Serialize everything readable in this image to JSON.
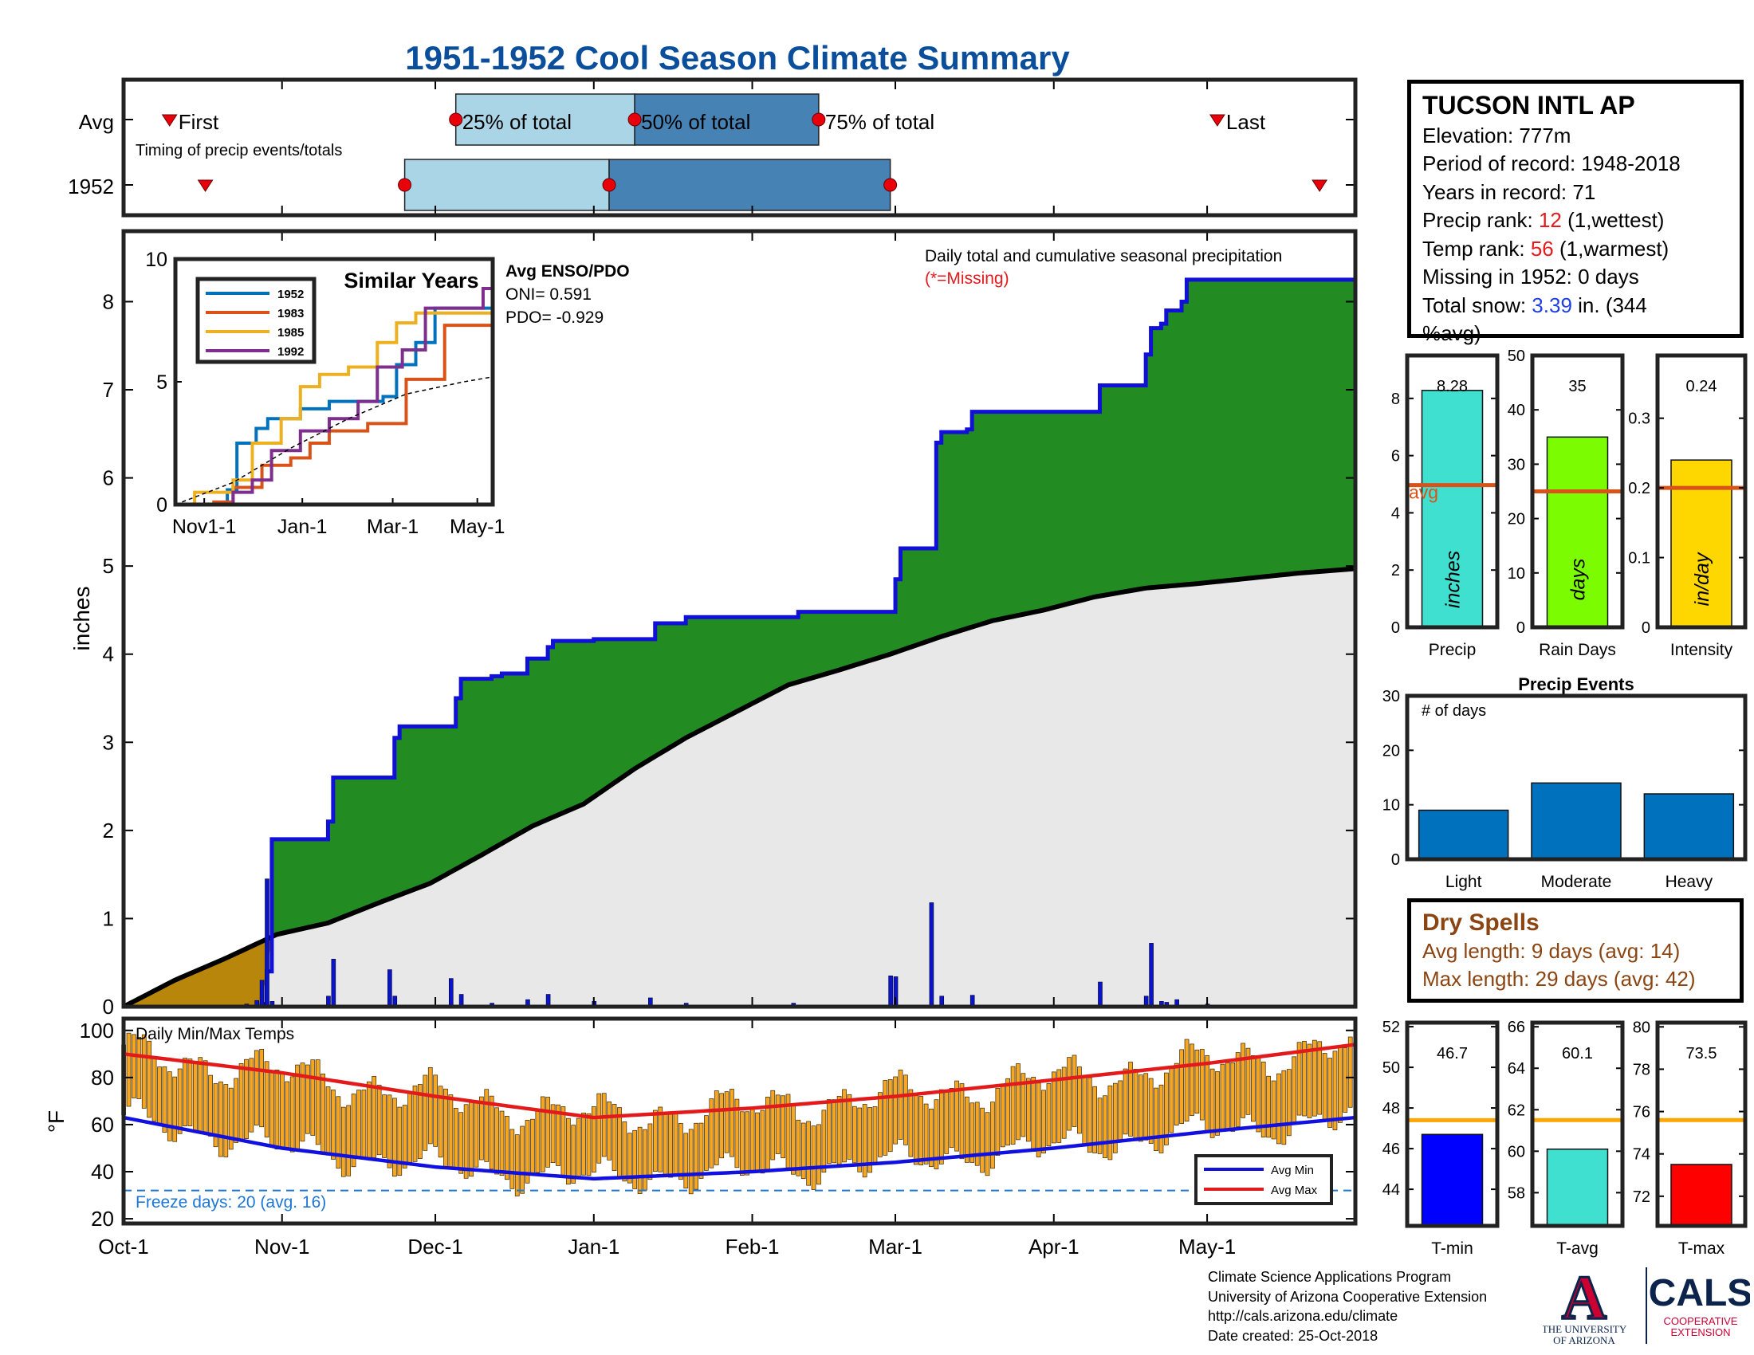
{
  "title": "1951-1952 Cool Season Climate Summary",
  "colors": {
    "title": "#0b4f9c",
    "light_band": "#a9d5e6",
    "dark_band": "#4682b4",
    "cumulative_fill": "#228b22",
    "cumulative_line": "#1010d8",
    "average_fill": "#e8e8e8",
    "early_fill": "#b8860b",
    "temp_bar": "#f5a623",
    "avg_min": "#1010e0",
    "avg_max": "#e31a1c",
    "freeze_line": "#1f77d4"
  },
  "timing": {
    "rows": [
      "Avg",
      "1952"
    ],
    "note": "Timing of precip events/totals",
    "labels": {
      "first": "First",
      "p25": "25% of total",
      "p50": "50% of total",
      "p75": "75% of total",
      "last": "Last"
    },
    "avg": {
      "first": 9,
      "p25": 65,
      "p50": 100,
      "p75": 136,
      "last": 214
    },
    "year": {
      "first": 16,
      "p25": 55,
      "p50": 95,
      "p75": 150,
      "last": 234
    }
  },
  "station": {
    "name": "TUCSON INTL AP",
    "elevation": "Elevation: 777m",
    "period": "Period of record: 1948-2018",
    "years": "Years in record: 71",
    "precip_rank_label": "Precip rank: ",
    "precip_rank": "12",
    "precip_rank_note": " (1,wettest)",
    "temp_rank_label": "Temp rank: ",
    "temp_rank": "56",
    "temp_rank_note": " (1,warmest)",
    "missing": "Missing in 1952: 0 days",
    "snow_label": "Total snow: ",
    "snow_value": "3.39",
    "snow_note_1": " in. (344",
    "snow_note_2": "%avg)"
  },
  "main_chart": {
    "ylabel": "inches",
    "yticks": [
      0,
      1,
      2,
      3,
      4,
      5,
      6,
      7,
      8
    ],
    "xticks": [
      "Oct-1",
      "Nov-1",
      "Dec-1",
      "Jan-1",
      "Feb-1",
      "Mar-1",
      "Apr-1",
      "May-1"
    ],
    "xtick_days": [
      0,
      31,
      61,
      92,
      123,
      151,
      182,
      212
    ],
    "note": "Daily total and cumulative seasonal precipitation",
    "missing_note": "(*=Missing)",
    "enso_title": "Avg ENSO/PDO",
    "oni": "ONI= 0.591",
    "pdo": "PDO= -0.929"
  },
  "chart_data": [
    {
      "type": "area",
      "title": "Daily total and cumulative seasonal precipitation",
      "ylabel": "inches",
      "ylim": [
        0,
        8.8
      ],
      "x_unit": "days since Oct-1",
      "cumulative_1952": [
        [
          0,
          0
        ],
        [
          27,
          0.03
        ],
        [
          28,
          0.4
        ],
        [
          29,
          1.9
        ],
        [
          39,
          1.9
        ],
        [
          40,
          2.1
        ],
        [
          41,
          2.6
        ],
        [
          52,
          2.6
        ],
        [
          53,
          3.05
        ],
        [
          54,
          3.18
        ],
        [
          64,
          3.18
        ],
        [
          65,
          3.5
        ],
        [
          66,
          3.72
        ],
        [
          72,
          3.75
        ],
        [
          74,
          3.78
        ],
        [
          79,
          3.95
        ],
        [
          83,
          4.08
        ],
        [
          84,
          4.15
        ],
        [
          92,
          4.17
        ],
        [
          103,
          4.17
        ],
        [
          104,
          4.35
        ],
        [
          110,
          4.42
        ],
        [
          131,
          4.42
        ],
        [
          132,
          4.48
        ],
        [
          150,
          4.48
        ],
        [
          151,
          4.85
        ],
        [
          152,
          5.2
        ],
        [
          158,
          5.2
        ],
        [
          159,
          6.4
        ],
        [
          160,
          6.52
        ],
        [
          165,
          6.55
        ],
        [
          166,
          6.75
        ],
        [
          190,
          6.75
        ],
        [
          191,
          7.05
        ],
        [
          199,
          7.05
        ],
        [
          200,
          7.4
        ],
        [
          201,
          7.7
        ],
        [
          203,
          7.75
        ],
        [
          204,
          7.9
        ],
        [
          207,
          8.0
        ],
        [
          208,
          8.25
        ],
        [
          241,
          8.28
        ]
      ],
      "average_cumulative": [
        [
          0,
          0
        ],
        [
          10,
          0.3
        ],
        [
          20,
          0.55
        ],
        [
          30,
          0.82
        ],
        [
          40,
          0.95
        ],
        [
          50,
          1.18
        ],
        [
          60,
          1.4
        ],
        [
          70,
          1.72
        ],
        [
          80,
          2.05
        ],
        [
          90,
          2.3
        ],
        [
          100,
          2.7
        ],
        [
          110,
          3.05
        ],
        [
          120,
          3.35
        ],
        [
          130,
          3.65
        ],
        [
          140,
          3.82
        ],
        [
          150,
          4.0
        ],
        [
          160,
          4.2
        ],
        [
          170,
          4.38
        ],
        [
          180,
          4.5
        ],
        [
          190,
          4.65
        ],
        [
          200,
          4.75
        ],
        [
          210,
          4.8
        ],
        [
          220,
          4.86
        ],
        [
          230,
          4.92
        ],
        [
          241,
          4.97
        ]
      ],
      "daily_precip": [
        [
          24,
          0.03
        ],
        [
          26,
          0.07
        ],
        [
          27,
          0.3
        ],
        [
          28,
          1.45
        ],
        [
          29,
          0.06
        ],
        [
          40,
          0.12
        ],
        [
          41,
          0.54
        ],
        [
          52,
          0.42
        ],
        [
          53,
          0.12
        ],
        [
          64,
          0.32
        ],
        [
          66,
          0.14
        ],
        [
          72,
          0.04
        ],
        [
          79,
          0.08
        ],
        [
          83,
          0.14
        ],
        [
          92,
          0.06
        ],
        [
          103,
          0.1
        ],
        [
          110,
          0.04
        ],
        [
          131,
          0.04
        ],
        [
          150,
          0.35
        ],
        [
          151,
          0.34
        ],
        [
          158,
          1.18
        ],
        [
          160,
          0.12
        ],
        [
          166,
          0.13
        ],
        [
          191,
          0.28
        ],
        [
          200,
          0.12
        ],
        [
          201,
          0.72
        ],
        [
          203,
          0.06
        ],
        [
          204,
          0.05
        ],
        [
          206,
          0.08
        ],
        [
          212,
          0.03
        ]
      ]
    },
    {
      "type": "line",
      "title": "Similar Years",
      "x_ticks": [
        "Nov1-1",
        "Jan-1",
        "Mar-1",
        "May-1"
      ],
      "ylim": [
        0,
        10
      ],
      "yticks": [
        0,
        5,
        10
      ],
      "series": [
        {
          "name": "1952",
          "color": "#0072bd",
          "points": [
            [
              0,
              0
            ],
            [
              27,
              0.6
            ],
            [
              32,
              2.5
            ],
            [
              42,
              3.1
            ],
            [
              48,
              3.5
            ],
            [
              65,
              3.9
            ],
            [
              80,
              4.2
            ],
            [
              108,
              4.4
            ],
            [
              115,
              5.7
            ],
            [
              125,
              6.6
            ],
            [
              135,
              8.0
            ],
            [
              165,
              8.0
            ]
          ]
        },
        {
          "name": "1983",
          "color": "#d95319",
          "points": [
            [
              0,
              0
            ],
            [
              20,
              0.1
            ],
            [
              30,
              0.7
            ],
            [
              45,
              1.6
            ],
            [
              60,
              1.9
            ],
            [
              70,
              2.5
            ],
            [
              80,
              3.0
            ],
            [
              100,
              3.3
            ],
            [
              120,
              5.1
            ],
            [
              140,
              7.3
            ],
            [
              165,
              7.3
            ]
          ]
        },
        {
          "name": "1985",
          "color": "#edb120",
          "points": [
            [
              0,
              0
            ],
            [
              10,
              0.5
            ],
            [
              30,
              1.0
            ],
            [
              40,
              2.5
            ],
            [
              55,
              3.5
            ],
            [
              65,
              4.8
            ],
            [
              75,
              5.3
            ],
            [
              90,
              5.6
            ],
            [
              105,
              6.6
            ],
            [
              115,
              7.4
            ],
            [
              125,
              7.8
            ],
            [
              165,
              7.9
            ]
          ]
        },
        {
          "name": "1992",
          "color": "#7e2f8e",
          "points": [
            [
              0,
              0
            ],
            [
              30,
              0.5
            ],
            [
              40,
              1.0
            ],
            [
              50,
              2.2
            ],
            [
              65,
              3.0
            ],
            [
              80,
              3.5
            ],
            [
              95,
              4.2
            ],
            [
              105,
              5.6
            ],
            [
              118,
              6.3
            ],
            [
              130,
              8.0
            ],
            [
              155,
              8.0
            ],
            [
              160,
              8.8
            ],
            [
              165,
              9.3
            ]
          ]
        },
        {
          "name": "avg",
          "color": "#000000",
          "dash": true,
          "points": [
            [
              0,
              0
            ],
            [
              30,
              0.9
            ],
            [
              60,
              2.3
            ],
            [
              90,
              3.5
            ],
            [
              120,
              4.5
            ],
            [
              150,
              5.0
            ],
            [
              165,
              5.2
            ]
          ]
        }
      ]
    },
    {
      "type": "bar",
      "title": "Daily Min/Max Temps",
      "ylabel": "°F",
      "ylim": [
        18,
        105
      ],
      "yticks": [
        20,
        40,
        60,
        80,
        100
      ],
      "avg_min_points": [
        [
          0,
          63
        ],
        [
          31,
          50
        ],
        [
          61,
          42
        ],
        [
          92,
          37
        ],
        [
          123,
          40
        ],
        [
          151,
          44
        ],
        [
          182,
          50
        ],
        [
          212,
          57
        ],
        [
          241,
          63
        ]
      ],
      "avg_max_points": [
        [
          0,
          90
        ],
        [
          31,
          82
        ],
        [
          61,
          72
        ],
        [
          92,
          63
        ],
        [
          123,
          67
        ],
        [
          151,
          72
        ],
        [
          182,
          79
        ],
        [
          212,
          86
        ],
        [
          241,
          94
        ]
      ],
      "legend": [
        "Avg Min",
        "Avg Max"
      ],
      "freeze_label": "Freeze days: 20 (avg. 16)",
      "freeze_temp": 32
    },
    {
      "type": "bar",
      "categories": [
        "Precip"
      ],
      "values": [
        8.28
      ],
      "value_label": "8.28",
      "avg": 4.97,
      "avg_label": "avg",
      "unit": "inches",
      "ylim": [
        0,
        9.5
      ],
      "yticks": [
        0,
        2,
        4,
        6,
        8
      ],
      "color": "#40e0d0"
    },
    {
      "type": "bar",
      "categories": [
        "Rain Days"
      ],
      "values": [
        35
      ],
      "value_label": "35",
      "avg": 25,
      "unit": "days",
      "ylim": [
        0,
        50
      ],
      "yticks": [
        0,
        10,
        20,
        30,
        40,
        50
      ],
      "color": "#7cfc00"
    },
    {
      "type": "bar",
      "categories": [
        "Intensity"
      ],
      "values": [
        0.24
      ],
      "value_label": "0.24",
      "avg": 0.2,
      "unit": "in/day",
      "ylim": [
        0,
        0.39
      ],
      "yticks": [
        0,
        0.1,
        0.2,
        0.3
      ],
      "color": "#ffd700"
    },
    {
      "type": "bar",
      "title": "Precip Events",
      "annotation": "# of days",
      "categories": [
        "Light",
        "Moderate",
        "Heavy"
      ],
      "values": [
        9,
        14,
        12
      ],
      "ylim": [
        0,
        30
      ],
      "yticks": [
        0,
        10,
        20,
        30
      ],
      "color": "#0072bd"
    },
    {
      "type": "bar",
      "categories": [
        "T-min"
      ],
      "values": [
        46.7
      ],
      "value_label": "46.7",
      "avg": 47.4,
      "ylim": [
        42.2,
        52.2
      ],
      "yticks": [
        44,
        46,
        48,
        50,
        52
      ],
      "color": "#0000ff"
    },
    {
      "type": "bar",
      "categories": [
        "T-avg"
      ],
      "values": [
        60.1
      ],
      "value_label": "60.1",
      "avg": 61.5,
      "ylim": [
        56.4,
        66.2
      ],
      "yticks": [
        58,
        60,
        62,
        64,
        66
      ],
      "color": "#40e0d0"
    },
    {
      "type": "bar",
      "categories": [
        "T-max"
      ],
      "values": [
        73.5
      ],
      "value_label": "73.5",
      "avg": 75.6,
      "ylim": [
        70.6,
        80.2
      ],
      "yticks": [
        72,
        74,
        76,
        78,
        80
      ],
      "color": "#ff0000"
    }
  ],
  "dry_spells": {
    "title": "Dry Spells",
    "avg_length": "Avg length: 9 days (avg: 14)",
    "max_length": "Max length: 29 days (avg: 42)"
  },
  "credits": {
    "line1": "Climate Science Applications Program",
    "line2": "University of Arizona Cooperative Extension",
    "line3": "http://cals.arizona.edu/climate",
    "line4": " Date created: 25-Oct-2018"
  },
  "logo": {
    "ua_letter": "A",
    "ua_line1": "THE UNIVERSITY",
    "ua_line2": "OF ARIZONA",
    "cals": "CALS",
    "cals_line1": "COOPERATIVE",
    "cals_line2": "EXTENSION",
    "red": "#cc0033",
    "navy": "#0c234b"
  }
}
